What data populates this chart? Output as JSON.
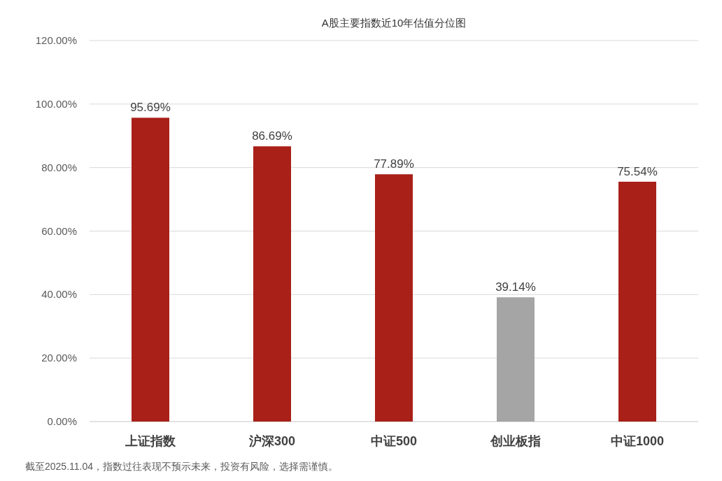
{
  "chart_data": {
    "type": "bar",
    "title": "A股主要指数近10年估值分位图",
    "categories": [
      "上证指数",
      "沪深300",
      "中证500",
      "创业板指",
      "中证1000"
    ],
    "values": [
      95.69,
      86.69,
      77.89,
      39.14,
      75.54
    ],
    "colors": [
      "#a82018",
      "#a82018",
      "#a82018",
      "#a5a5a5",
      "#a82018"
    ],
    "value_labels": [
      "95.69%",
      "86.69%",
      "77.89%",
      "39.14%",
      "75.54%"
    ],
    "ylim": [
      0,
      120
    ],
    "yticks": [
      {
        "value": 0,
        "label": "0.00%"
      },
      {
        "value": 20,
        "label": "20.00%"
      },
      {
        "value": 40,
        "label": "40.00%"
      },
      {
        "value": 60,
        "label": "60.00%"
      },
      {
        "value": 80,
        "label": "80.00%"
      },
      {
        "value": 100,
        "label": "100.00%"
      },
      {
        "value": 120,
        "label": "120.00%"
      }
    ],
    "grid": "y",
    "annotations": [
      "截至2025.11.04，指数过往表现不预示未来，投资有风险，选择需谨慎。"
    ]
  }
}
